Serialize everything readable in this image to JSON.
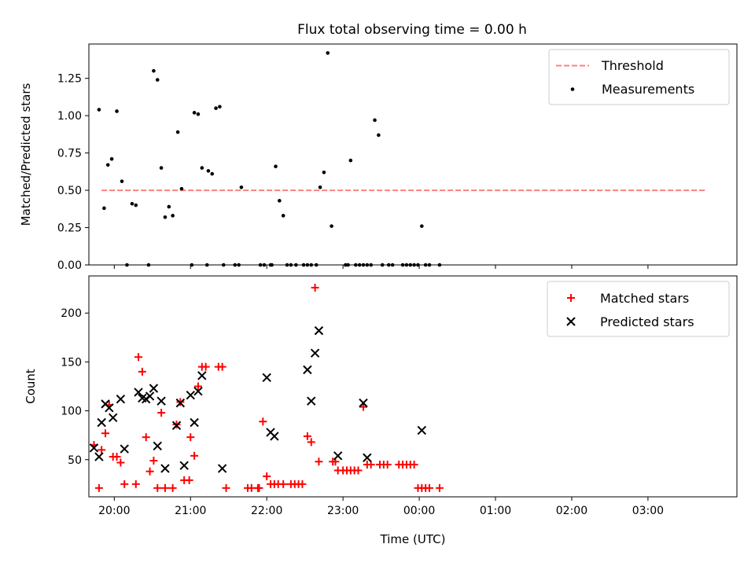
{
  "figure_title": "Flux total observing time = 0.00 h",
  "chart_data": [
    {
      "type": "scatter",
      "ylabel": "Matched/Predicted stars",
      "xlabel": "",
      "ylim": [
        0,
        1.48
      ],
      "xlim": [
        "19:40",
        "04:10"
      ],
      "yticks": [
        0.0,
        0.25,
        0.5,
        0.75,
        1.0,
        1.25
      ],
      "ytick_labels": [
        "0.00",
        "0.25",
        "0.50",
        "0.75",
        "1.00",
        "1.25"
      ],
      "grid": false,
      "legend_position": "top-right",
      "threshold": {
        "name": "Threshold",
        "value": 0.5,
        "x": [
          "19:50",
          "03:45"
        ],
        "color": "#ff7f7f",
        "style": "dashed"
      },
      "series": [
        {
          "name": "Measurements",
          "marker": "dot",
          "color": "#000000",
          "points": [
            [
              "19:48",
              1.04
            ],
            [
              "19:52",
              0.38
            ],
            [
              "19:55",
              0.67
            ],
            [
              "19:58",
              0.71
            ],
            [
              "20:02",
              1.03
            ],
            [
              "20:06",
              0.56
            ],
            [
              "20:10",
              0.0
            ],
            [
              "20:14",
              0.41
            ],
            [
              "20:17",
              0.4
            ],
            [
              "20:27",
              0.0
            ],
            [
              "20:31",
              1.3
            ],
            [
              "20:34",
              1.24
            ],
            [
              "20:37",
              0.65
            ],
            [
              "20:40",
              0.32
            ],
            [
              "20:43",
              0.39
            ],
            [
              "20:46",
              0.33
            ],
            [
              "20:50",
              0.89
            ],
            [
              "20:53",
              0.51
            ],
            [
              "21:01",
              0.0
            ],
            [
              "21:03",
              1.02
            ],
            [
              "21:06",
              1.01
            ],
            [
              "21:09",
              0.65
            ],
            [
              "21:13",
              0.0
            ],
            [
              "21:14",
              0.63
            ],
            [
              "21:17",
              0.61
            ],
            [
              "21:20",
              1.05
            ],
            [
              "21:23",
              1.06
            ],
            [
              "21:26",
              0.0
            ],
            [
              "21:35",
              0.0
            ],
            [
              "21:38",
              0.0
            ],
            [
              "21:40",
              0.52
            ],
            [
              "21:55",
              0.0
            ],
            [
              "21:58",
              0.0
            ],
            [
              "22:03",
              0.0
            ],
            [
              "22:04",
              0.0
            ],
            [
              "22:07",
              0.66
            ],
            [
              "22:10",
              0.43
            ],
            [
              "22:13",
              0.33
            ],
            [
              "22:16",
              0.0
            ],
            [
              "22:19",
              0.0
            ],
            [
              "22:23",
              0.0
            ],
            [
              "22:29",
              0.0
            ],
            [
              "22:32",
              0.0
            ],
            [
              "22:35",
              0.0
            ],
            [
              "22:39",
              0.0
            ],
            [
              "22:42",
              0.52
            ],
            [
              "22:45",
              0.62
            ],
            [
              "22:48",
              1.42
            ],
            [
              "22:51",
              0.26
            ],
            [
              "23:02",
              0.0
            ],
            [
              "23:04",
              0.0
            ],
            [
              "23:06",
              0.7
            ],
            [
              "23:10",
              0.0
            ],
            [
              "23:13",
              0.0
            ],
            [
              "23:16",
              0.0
            ],
            [
              "23:19",
              0.0
            ],
            [
              "23:22",
              0.0
            ],
            [
              "23:25",
              0.97
            ],
            [
              "23:28",
              0.87
            ],
            [
              "23:31",
              0.0
            ],
            [
              "23:36",
              0.0
            ],
            [
              "23:39",
              0.0
            ],
            [
              "23:47",
              0.0
            ],
            [
              "23:50",
              0.0
            ],
            [
              "23:53",
              0.0
            ],
            [
              "23:56",
              0.0
            ],
            [
              "23:59",
              0.0
            ],
            [
              "00:02",
              0.26
            ],
            [
              "00:05",
              0.0
            ],
            [
              "00:08",
              0.0
            ],
            [
              "00:16",
              0.0
            ]
          ]
        }
      ]
    },
    {
      "type": "scatter",
      "ylabel": "Count",
      "xlabel": "Time (UTC)",
      "ylim": [
        12,
        238
      ],
      "xlim": [
        "19:40",
        "04:10"
      ],
      "yticks": [
        50,
        100,
        150,
        200
      ],
      "ytick_labels": [
        "50",
        "100",
        "150",
        "200"
      ],
      "xticks": [
        "20:00",
        "21:00",
        "22:00",
        "23:00",
        "00:00",
        "01:00",
        "02:00",
        "03:00"
      ],
      "xtick_labels": [
        "20:00",
        "21:00",
        "22:00",
        "23:00",
        "00:00",
        "01:00",
        "02:00",
        "03:00"
      ],
      "grid": false,
      "legend_position": "top-right",
      "series": [
        {
          "name": "Matched stars",
          "marker": "plus",
          "color": "#ff0000",
          "points": [
            [
              "19:44",
              65
            ],
            [
              "19:48",
              21
            ],
            [
              "19:50",
              60
            ],
            [
              "19:53",
              77
            ],
            [
              "19:56",
              106
            ],
            [
              "19:59",
              53
            ],
            [
              "20:02",
              53
            ],
            [
              "20:05",
              47
            ],
            [
              "20:08",
              25
            ],
            [
              "20:17",
              25
            ],
            [
              "20:19",
              155
            ],
            [
              "20:22",
              140
            ],
            [
              "20:25",
              73
            ],
            [
              "20:28",
              38
            ],
            [
              "20:31",
              49
            ],
            [
              "20:34",
              21
            ],
            [
              "20:37",
              98
            ],
            [
              "20:40",
              21
            ],
            [
              "20:46",
              21
            ],
            [
              "20:49",
              86
            ],
            [
              "20:52",
              109
            ],
            [
              "20:55",
              29
            ],
            [
              "20:59",
              29
            ],
            [
              "21:00",
              73
            ],
            [
              "21:03",
              54
            ],
            [
              "21:06",
              125
            ],
            [
              "21:09",
              145
            ],
            [
              "21:12",
              145
            ],
            [
              "21:22",
              145
            ],
            [
              "21:25",
              145
            ],
            [
              "21:28",
              21
            ],
            [
              "21:45",
              21
            ],
            [
              "21:48",
              21
            ],
            [
              "21:53",
              21
            ],
            [
              "21:54",
              21
            ],
            [
              "21:57",
              89
            ],
            [
              "22:00",
              33
            ],
            [
              "22:03",
              25
            ],
            [
              "22:06",
              25
            ],
            [
              "22:09",
              25
            ],
            [
              "22:13",
              25
            ],
            [
              "22:19",
              25
            ],
            [
              "22:22",
              25
            ],
            [
              "22:25",
              25
            ],
            [
              "22:28",
              25
            ],
            [
              "22:32",
              74
            ],
            [
              "22:35",
              68
            ],
            [
              "22:38",
              226
            ],
            [
              "22:41",
              48
            ],
            [
              "22:52",
              48
            ],
            [
              "22:54",
              48
            ],
            [
              "22:56",
              39
            ],
            [
              "23:00",
              39
            ],
            [
              "23:03",
              39
            ],
            [
              "23:06",
              39
            ],
            [
              "23:09",
              39
            ],
            [
              "23:12",
              39
            ],
            [
              "23:16",
              104
            ],
            [
              "23:19",
              45
            ],
            [
              "23:22",
              45
            ],
            [
              "23:29",
              45
            ],
            [
              "23:32",
              45
            ],
            [
              "23:35",
              45
            ],
            [
              "23:44",
              45
            ],
            [
              "23:47",
              45
            ],
            [
              "23:50",
              45
            ],
            [
              "23:53",
              45
            ],
            [
              "23:56",
              45
            ],
            [
              "23:59",
              21
            ],
            [
              "00:02",
              21
            ],
            [
              "00:05",
              21
            ],
            [
              "00:08",
              21
            ],
            [
              "00:16",
              21
            ]
          ]
        },
        {
          "name": "Predicted stars",
          "marker": "x",
          "color": "#000000",
          "points": [
            [
              "19:44",
              62
            ],
            [
              "19:48",
              53
            ],
            [
              "19:50",
              88
            ],
            [
              "19:53",
              107
            ],
            [
              "19:56",
              103
            ],
            [
              "19:59",
              93
            ],
            [
              "20:05",
              112
            ],
            [
              "20:08",
              61
            ],
            [
              "20:19",
              119
            ],
            [
              "20:22",
              113
            ],
            [
              "20:25",
              112
            ],
            [
              "20:28",
              115
            ],
            [
              "20:31",
              123
            ],
            [
              "20:34",
              64
            ],
            [
              "20:37",
              110
            ],
            [
              "20:40",
              41
            ],
            [
              "20:49",
              85
            ],
            [
              "20:52",
              108
            ],
            [
              "20:55",
              44
            ],
            [
              "21:00",
              116
            ],
            [
              "21:03",
              88
            ],
            [
              "21:06",
              120
            ],
            [
              "21:09",
              136
            ],
            [
              "21:25",
              41
            ],
            [
              "22:00",
              134
            ],
            [
              "22:03",
              78
            ],
            [
              "22:06",
              74
            ],
            [
              "22:32",
              142
            ],
            [
              "22:35",
              110
            ],
            [
              "22:38",
              159
            ],
            [
              "22:41",
              182
            ],
            [
              "22:56",
              54
            ],
            [
              "23:16",
              108
            ],
            [
              "23:19",
              52
            ],
            [
              "00:02",
              80
            ]
          ]
        }
      ]
    }
  ]
}
